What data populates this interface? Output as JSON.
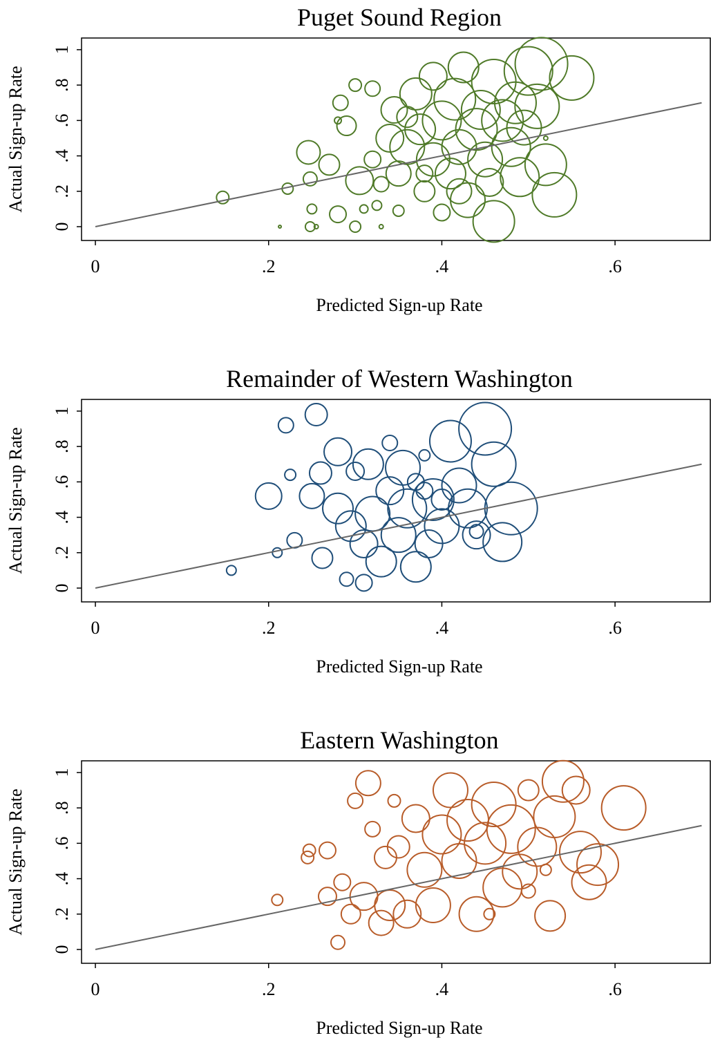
{
  "chart_data": [
    {
      "type": "scatter",
      "title": "Puget Sound Region",
      "xlabel": "Predicted Sign-up Rate",
      "ylabel": "Actual Sign-up Rate",
      "xlim": [
        -0.016,
        0.71
      ],
      "ylim": [
        -0.078,
        1.066
      ],
      "xticks": [
        0,
        {
          "value": 0.2,
          "label": ".2"
        },
        {
          "value": 0.4,
          "label": ".4"
        },
        {
          "value": 0.6,
          "label": ".6"
        }
      ],
      "yticks": [
        0,
        {
          "value": 0.2,
          "label": ".2"
        },
        {
          "value": 0.4,
          "label": ".4"
        },
        {
          "value": 0.6,
          "label": ".6"
        },
        {
          "value": 0.8,
          "label": ".8"
        },
        1
      ],
      "reference_line": {
        "x": [
          0,
          0.7
        ],
        "y": [
          0,
          0.7
        ],
        "color": "#666666"
      },
      "series": [
        {
          "color": "#4f7a28",
          "x": [
            0.147,
            0.213,
            0.222,
            0.246,
            0.248,
            0.25,
            0.248,
            0.255,
            0.27,
            0.28,
            0.28,
            0.283,
            0.29,
            0.3,
            0.3,
            0.305,
            0.31,
            0.32,
            0.32,
            0.325,
            0.33,
            0.33,
            0.34,
            0.345,
            0.35,
            0.35,
            0.36,
            0.37,
            0.375,
            0.38,
            0.39,
            0.39,
            0.4,
            0.41,
            0.415,
            0.42,
            0.425,
            0.43,
            0.44,
            0.445,
            0.45,
            0.455,
            0.46,
            0.46,
            0.47,
            0.48,
            0.485,
            0.49,
            0.495,
            0.5,
            0.51,
            0.515,
            0.52,
            0.52,
            0.53,
            0.55,
            0.38,
            0.36,
            0.42,
            0.4
          ],
          "y": [
            0.165,
            0,
            0.215,
            0.42,
            0.27,
            0.1,
            0,
            0,
            0.35,
            0.07,
            0.6,
            0.7,
            0.57,
            0.8,
            0,
            0.26,
            0.1,
            0.38,
            0.78,
            0.12,
            0,
            0.24,
            0.5,
            0.66,
            0.3,
            0.09,
            0.45,
            0.75,
            0.55,
            0.2,
            0.38,
            0.85,
            0.6,
            0.3,
            0.72,
            0.45,
            0.9,
            0.15,
            0.55,
            0.66,
            0.38,
            0.25,
            0.03,
            0.82,
            0.6,
            0.45,
            0.7,
            0.28,
            0.56,
            0.88,
            0.68,
            0.92,
            0.5,
            0.35,
            0.18,
            0.84,
            0.3,
            0.62,
            0.2,
            0.08
          ],
          "sizes": [
            9,
            2,
            8,
            17,
            10,
            7,
            7,
            3,
            15,
            12,
            5,
            11,
            14,
            9,
            8,
            20,
            6,
            12,
            11,
            7,
            3,
            11,
            20,
            19,
            18,
            8,
            25,
            23,
            22,
            15,
            24,
            20,
            28,
            22,
            30,
            25,
            22,
            25,
            30,
            28,
            25,
            20,
            30,
            32,
            30,
            28,
            30,
            28,
            25,
            35,
            32,
            38,
            3,
            30,
            32,
            32,
            12,
            15,
            18,
            12
          ]
        }
      ]
    },
    {
      "type": "scatter",
      "title": "Remainder of Western Washington",
      "xlabel": "Predicted Sign-up Rate",
      "ylabel": "Actual Sign-up Rate",
      "xlim": [
        -0.016,
        0.71
      ],
      "ylim": [
        -0.078,
        1.066
      ],
      "xticks": [
        0,
        {
          "value": 0.2,
          "label": ".2"
        },
        {
          "value": 0.4,
          "label": ".4"
        },
        {
          "value": 0.6,
          "label": ".6"
        }
      ],
      "yticks": [
        0,
        {
          "value": 0.2,
          "label": ".2"
        },
        {
          "value": 0.4,
          "label": ".4"
        },
        {
          "value": 0.6,
          "label": ".6"
        },
        {
          "value": 0.8,
          "label": ".8"
        },
        1
      ],
      "reference_line": {
        "x": [
          0,
          0.7
        ],
        "y": [
          0,
          0.7
        ],
        "color": "#666666"
      },
      "series": [
        {
          "color": "#1f4e79",
          "x": [
            0.157,
            0.21,
            0.2,
            0.22,
            0.225,
            0.23,
            0.255,
            0.25,
            0.26,
            0.262,
            0.28,
            0.28,
            0.29,
            0.295,
            0.3,
            0.31,
            0.31,
            0.315,
            0.32,
            0.33,
            0.34,
            0.34,
            0.35,
            0.355,
            0.36,
            0.37,
            0.37,
            0.38,
            0.385,
            0.39,
            0.4,
            0.41,
            0.42,
            0.43,
            0.44,
            0.45,
            0.46,
            0.47,
            0.48,
            0.44,
            0.4,
            0.38
          ],
          "y": [
            0.1,
            0.2,
            0.52,
            0.92,
            0.64,
            0.27,
            0.98,
            0.52,
            0.65,
            0.17,
            0.77,
            0.45,
            0.05,
            0.35,
            0.66,
            0.03,
            0.25,
            0.7,
            0.42,
            0.15,
            0.82,
            0.55,
            0.3,
            0.68,
            0.45,
            0.12,
            0.6,
            0.75,
            0.25,
            0.5,
            0.35,
            0.83,
            0.58,
            0.45,
            0.3,
            0.9,
            0.7,
            0.26,
            0.45,
            0.32,
            0.5,
            0.55
          ],
          "sizes": [
            7,
            7,
            19,
            11,
            8,
            11,
            16,
            18,
            16,
            15,
            20,
            22,
            10,
            22,
            13,
            12,
            20,
            22,
            25,
            22,
            11,
            20,
            25,
            25,
            28,
            22,
            12,
            8,
            20,
            30,
            25,
            30,
            25,
            28,
            20,
            38,
            32,
            28,
            38,
            10,
            15,
            12
          ]
        }
      ]
    },
    {
      "type": "scatter",
      "title": "Eastern Washington",
      "xlabel": "Predicted Sign-up Rate",
      "ylabel": "Actual Sign-up Rate",
      "xlim": [
        -0.016,
        0.71
      ],
      "ylim": [
        -0.078,
        1.066
      ],
      "xticks": [
        0,
        {
          "value": 0.2,
          "label": ".2"
        },
        {
          "value": 0.4,
          "label": ".4"
        },
        {
          "value": 0.6,
          "label": ".6"
        }
      ],
      "yticks": [
        0,
        {
          "value": 0.2,
          "label": ".2"
        },
        {
          "value": 0.4,
          "label": ".4"
        },
        {
          "value": 0.6,
          "label": ".6"
        },
        {
          "value": 0.8,
          "label": ".8"
        },
        1
      ],
      "reference_line": {
        "x": [
          0,
          0.7
        ],
        "y": [
          0,
          0.7
        ],
        "color": "#666666"
      },
      "series": [
        {
          "color": "#b85c29",
          "x": [
            0.21,
            0.245,
            0.247,
            0.268,
            0.268,
            0.28,
            0.285,
            0.295,
            0.3,
            0.31,
            0.315,
            0.32,
            0.33,
            0.335,
            0.34,
            0.345,
            0.35,
            0.36,
            0.37,
            0.38,
            0.39,
            0.4,
            0.41,
            0.42,
            0.43,
            0.44,
            0.45,
            0.46,
            0.47,
            0.48,
            0.49,
            0.5,
            0.5,
            0.51,
            0.525,
            0.53,
            0.54,
            0.555,
            0.56,
            0.57,
            0.58,
            0.61,
            0.52,
            0.455
          ],
          "y": [
            0.28,
            0.52,
            0.56,
            0.56,
            0.3,
            0.04,
            0.38,
            0.2,
            0.84,
            0.3,
            0.94,
            0.68,
            0.15,
            0.52,
            0.25,
            0.84,
            0.58,
            0.2,
            0.74,
            0.45,
            0.25,
            0.65,
            0.9,
            0.5,
            0.73,
            0.2,
            0.6,
            0.82,
            0.35,
            0.68,
            0.44,
            0.33,
            0.9,
            0.58,
            0.19,
            0.75,
            0.95,
            0.9,
            0.55,
            0.38,
            0.48,
            0.8,
            0.45,
            0.2
          ],
          "sizes": [
            8,
            9,
            9,
            12,
            13,
            10,
            12,
            14,
            11,
            20,
            18,
            11,
            18,
            16,
            22,
            9,
            16,
            20,
            20,
            25,
            25,
            28,
            25,
            25,
            30,
            25,
            30,
            32,
            28,
            35,
            25,
            10,
            15,
            28,
            22,
            30,
            30,
            20,
            30,
            25,
            30,
            32,
            8,
            8
          ]
        }
      ]
    }
  ]
}
